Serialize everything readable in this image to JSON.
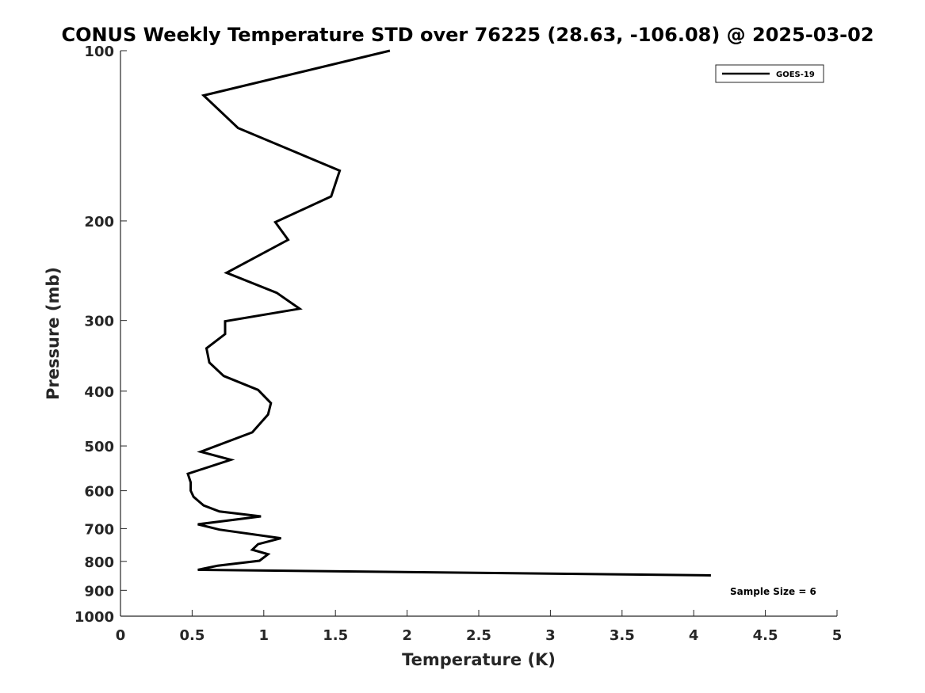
{
  "chart_data": {
    "type": "line",
    "title": "CONUS Weekly Temperature STD over 76225 (28.63, -106.08) @ 2025-03-02",
    "xlabel": "Temperature (K)",
    "ylabel": "Pressure (mb)",
    "xlim": [
      0,
      5
    ],
    "ylim": [
      1000,
      100
    ],
    "yscale": "log",
    "y_reversed": true,
    "xticks": [
      0,
      0.5,
      1,
      1.5,
      2,
      2.5,
      3,
      3.5,
      4,
      4.5,
      5
    ],
    "xtick_labels": [
      "0",
      "0.5",
      "1",
      "1.5",
      "2",
      "2.5",
      "3",
      "3.5",
      "4",
      "4.5",
      "5"
    ],
    "yticks": [
      100,
      200,
      300,
      400,
      500,
      600,
      700,
      800,
      900,
      1000
    ],
    "ytick_labels": [
      "100",
      "200",
      "300",
      "400",
      "500",
      "600",
      "700",
      "800",
      "900",
      "1000"
    ],
    "grid": false,
    "legend_position": "top-right",
    "series": [
      {
        "name": "GOES-19",
        "color": "#000000",
        "x": [
          1.88,
          0.58,
          0.82,
          1.53,
          1.47,
          1.08,
          1.17,
          0.74,
          1.09,
          1.25,
          0.73,
          0.73,
          0.6,
          0.62,
          0.72,
          0.96,
          1.05,
          1.03,
          0.92,
          0.56,
          0.77,
          0.47,
          0.49,
          0.49,
          0.51,
          0.58,
          0.69,
          0.98,
          0.54,
          0.69,
          1.12,
          0.96,
          0.92,
          1.03,
          0.97,
          0.68,
          0.54,
          4.12
        ],
        "y": [
          100,
          120,
          137,
          163,
          181,
          201,
          216,
          247,
          268,
          286,
          301,
          317,
          336,
          356,
          376,
          398,
          420,
          440,
          473,
          512,
          529,
          560,
          580,
          600,
          615,
          637,
          653,
          666,
          688,
          703,
          728,
          746,
          763,
          777,
          798,
          814,
          828,
          847
        ]
      }
    ],
    "annotations": [
      {
        "text": "Sample Size = 6"
      }
    ]
  }
}
